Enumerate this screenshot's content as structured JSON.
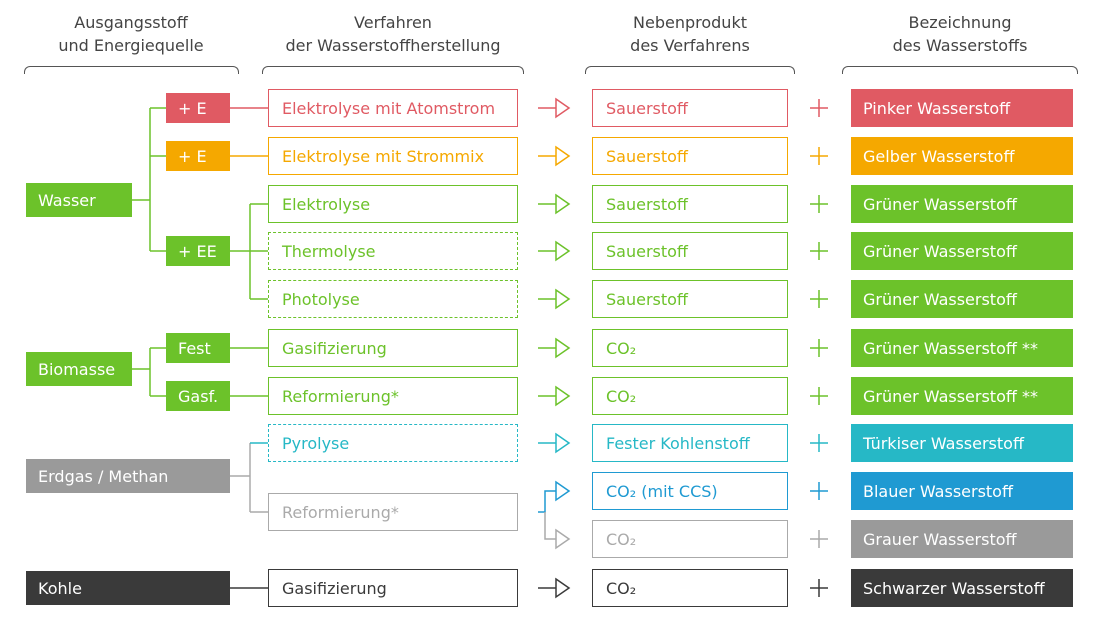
{
  "colors": {
    "pink": "#E05A63",
    "yellow": "#F5A800",
    "green": "#6CC22A",
    "turquoise": "#26B8C6",
    "blue": "#1F9AD2",
    "grey": "#9A9A9A",
    "greyline": "#AAAAAA",
    "dark": "#3A3A3A"
  },
  "headers": {
    "source": "Ausgangsstoff\nund Energiequelle",
    "process": "Verfahren\nder Wasserstoffherstellung",
    "byproduct": "Nebenprodukt\ndes Verfahrens",
    "name": "Bezeichnung\ndes Wasserstoffs"
  },
  "sources": {
    "wasser": "Wasser",
    "biomasse": "Biomasse",
    "erdgas": "Erdgas / Methan",
    "kohle": "Kohle"
  },
  "energy": {
    "e_pink": "+ E",
    "e_yellow": "+ E",
    "ee": "+ EE",
    "fest": "Fest",
    "gasf": "Gasf."
  },
  "rows": [
    {
      "process": "Elektrolyse mit Atomstrom",
      "byproduct": "Sauerstoff",
      "name": "Pinker Wasserstoff",
      "color": "pink"
    },
    {
      "process": "Elektrolyse mit Strommix",
      "byproduct": "Sauerstoff",
      "name": "Gelber Wasserstoff",
      "color": "yellow"
    },
    {
      "process": "Elektrolyse",
      "byproduct": "Sauerstoff",
      "name": "Grüner Wasserstoff",
      "color": "green"
    },
    {
      "process": "Thermolyse",
      "byproduct": "Sauerstoff",
      "name": "Grüner Wasserstoff",
      "color": "green"
    },
    {
      "process": "Photolyse",
      "byproduct": "Sauerstoff",
      "name": "Grüner Wasserstoff",
      "color": "green"
    },
    {
      "process": "Gasifizierung",
      "byproduct": "CO₂",
      "name": "Grüner Wasserstoff **",
      "color": "green"
    },
    {
      "process": "Reformierung*",
      "byproduct": "CO₂",
      "name": "Grüner Wasserstoff **",
      "color": "green"
    },
    {
      "process": "Pyrolyse",
      "byproduct": "Fester Kohlenstoff",
      "name": "Türkiser Wasserstoff",
      "color": "turquoise"
    },
    {
      "process": "Reformierung*",
      "byproduct": "CO₂ (mit CCS)",
      "name": "Blauer Wasserstoff",
      "color": "blue"
    },
    {
      "process": "",
      "byproduct": "CO₂",
      "name": "Grauer Wasserstoff",
      "color": "grey"
    },
    {
      "process": "Gasifizierung",
      "byproduct": "CO₂",
      "name": "Schwarzer Wasserstoff",
      "color": "dark"
    }
  ]
}
